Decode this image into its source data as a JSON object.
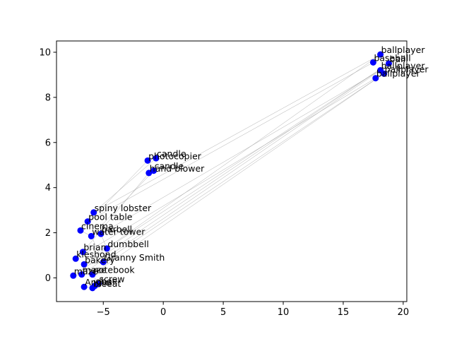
{
  "chart_data": {
    "type": "scatter",
    "title": "",
    "xlabel": "",
    "ylabel": "",
    "xlim": [
      -8.9,
      20.3
    ],
    "ylim": [
      -1.05,
      10.5
    ],
    "xticks": [
      -5,
      0,
      5,
      10,
      15,
      20
    ],
    "yticks": [
      0,
      2,
      4,
      6,
      8,
      10
    ],
    "grid": false,
    "point_color": "#0000ff",
    "edge_color": "#999999",
    "points": [
      {
        "label": "ballplayer",
        "x": 18.1,
        "y": 9.9
      },
      {
        "label": "baseball",
        "x": 17.5,
        "y": 9.55
      },
      {
        "label": "ball",
        "x": 18.8,
        "y": 9.5
      },
      {
        "label": "ballplayer",
        "x": 18.1,
        "y": 9.2
      },
      {
        "label": "ballplayer",
        "x": 18.4,
        "y": 9.05
      },
      {
        "label": "ballplayer",
        "x": 17.7,
        "y": 8.85
      },
      {
        "label": "candle",
        "x": -0.6,
        "y": 5.3
      },
      {
        "label": "photocopier",
        "x": -1.3,
        "y": 5.2
      },
      {
        "label": "candle",
        "x": -0.8,
        "y": 4.75
      },
      {
        "label": "hand blower",
        "x": -1.2,
        "y": 4.65
      },
      {
        "label": "spiny lobster",
        "x": -5.8,
        "y": 2.9
      },
      {
        "label": "pool table",
        "x": -6.3,
        "y": 2.5
      },
      {
        "label": "cinema",
        "x": -6.9,
        "y": 2.1
      },
      {
        "label": "barbell",
        "x": -5.2,
        "y": 1.95
      },
      {
        "label": "water tower",
        "x": -6.0,
        "y": 1.85
      },
      {
        "label": "dumbbell",
        "x": -4.7,
        "y": 1.3
      },
      {
        "label": "brian",
        "x": -6.7,
        "y": 1.15
      },
      {
        "label": "Granny Smith",
        "x": -5.0,
        "y": 0.7
      },
      {
        "label": "kleshond",
        "x": -7.3,
        "y": 0.85
      },
      {
        "label": "bakery",
        "x": -6.6,
        "y": 0.6
      },
      {
        "label": "maze",
        "x": -6.8,
        "y": 0.15
      },
      {
        "label": "notebook",
        "x": -5.9,
        "y": 0.15
      },
      {
        "label": "maze",
        "x": -7.5,
        "y": 0.1
      },
      {
        "label": "screw",
        "x": -5.4,
        "y": -0.25
      },
      {
        "label": "Angus",
        "x": -6.6,
        "y": -0.4
      },
      {
        "label": "oboe",
        "x": -5.7,
        "y": -0.35
      },
      {
        "label": "bleeat",
        "x": -5.9,
        "y": -0.45
      }
    ],
    "edges": [
      [
        10,
        0
      ],
      [
        10,
        6
      ],
      [
        11,
        1
      ],
      [
        12,
        7
      ],
      [
        13,
        3
      ],
      [
        14,
        8
      ],
      [
        15,
        2
      ],
      [
        16,
        9
      ],
      [
        17,
        4
      ],
      [
        18,
        5
      ],
      [
        19,
        0
      ],
      [
        20,
        3
      ],
      [
        21,
        4
      ],
      [
        22,
        2
      ],
      [
        10,
        11
      ],
      [
        11,
        12
      ],
      [
        12,
        14
      ],
      [
        13,
        15
      ],
      [
        16,
        18
      ],
      [
        17,
        19
      ],
      [
        19,
        20
      ],
      [
        20,
        22
      ],
      [
        21,
        23
      ],
      [
        23,
        25
      ],
      [
        24,
        26
      ],
      [
        14,
        17
      ]
    ]
  }
}
